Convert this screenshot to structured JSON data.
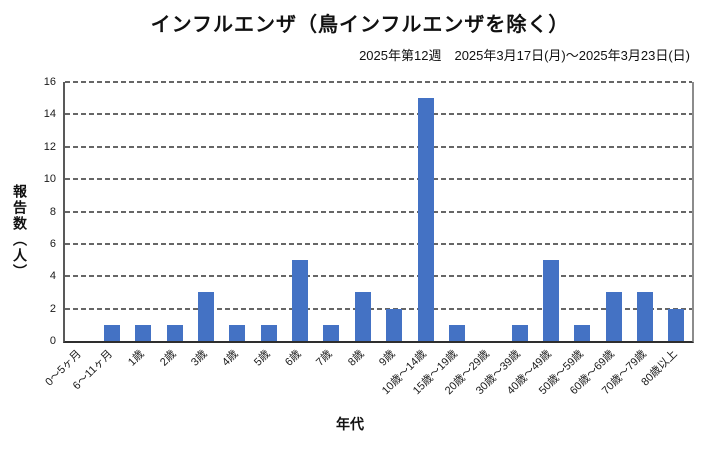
{
  "chart_data": {
    "type": "bar",
    "title": "インフルエンザ（鳥インフルエンザを除く）",
    "subtitle": "2025年第12週　2025年3月17日(月)～2025年3月23日(日)",
    "xlabel": "年代",
    "ylabel": "報告数（人）",
    "categories": [
      "0～5ヶ月",
      "6～11ヶ月",
      "1歳",
      "2歳",
      "3歳",
      "4歳",
      "5歳",
      "6歳",
      "7歳",
      "8歳",
      "9歳",
      "10歳～14歳",
      "15歳～19歳",
      "20歳～29歳",
      "30歳～39歳",
      "40歳～49歳",
      "50歳～59歳",
      "60歳～69歳",
      "70歳～79歳",
      "80歳以上"
    ],
    "values": [
      0,
      1,
      1,
      1,
      3,
      1,
      1,
      5,
      1,
      3,
      2,
      15,
      1,
      0,
      1,
      5,
      1,
      3,
      3,
      2
    ],
    "ylim": [
      0,
      16
    ],
    "yticks": [
      0,
      2,
      4,
      6,
      8,
      10,
      12,
      14,
      16
    ],
    "bar_color": "#4472C4",
    "grid": "horizontal-dashed",
    "legend": "none"
  }
}
